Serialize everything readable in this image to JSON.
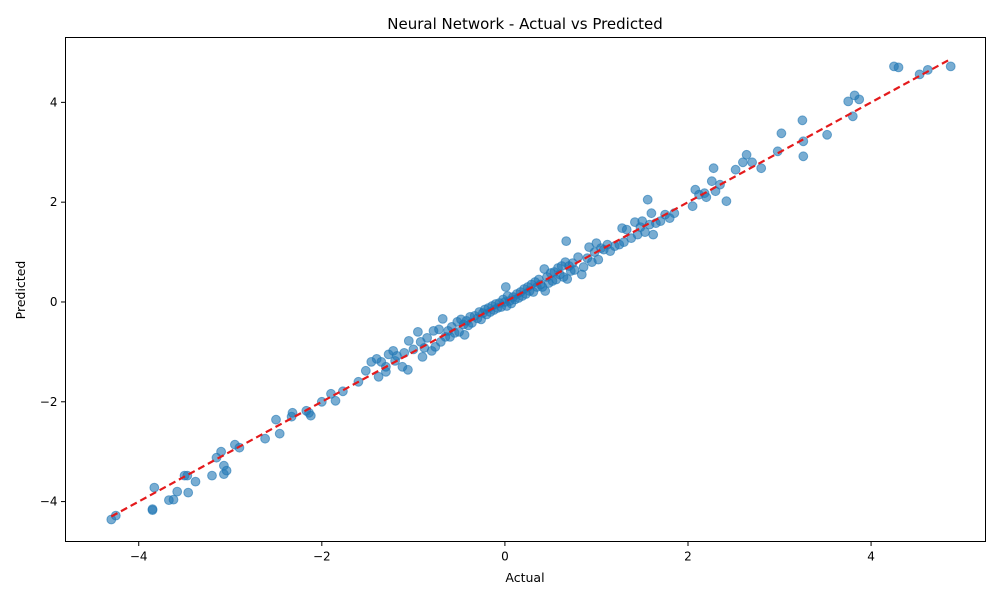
{
  "chart_data": {
    "type": "scatter",
    "title": "Neural Network - Actual vs Predicted",
    "xlabel": "Actual",
    "ylabel": "Predicted",
    "xlim": [
      -4.8,
      5.25
    ],
    "ylim": [
      -4.8,
      5.3
    ],
    "xticks": [
      -4,
      -2,
      0,
      2,
      4
    ],
    "yticks": [
      -4,
      -2,
      0,
      2,
      4
    ],
    "tick_labels_x": [
      "−4",
      "−2",
      "0",
      "2",
      "4"
    ],
    "tick_labels_y": [
      "−4",
      "−2",
      "0",
      "2",
      "4"
    ],
    "grid": false,
    "point_color": "#1f77b4",
    "line_color": "#e41a1c",
    "reference_line": {
      "style": "dashed",
      "x": [
        -4.3,
        4.87
      ],
      "y": [
        -4.3,
        4.87
      ]
    },
    "points": [
      [
        -4.3,
        -4.36
      ],
      [
        -4.25,
        -4.28
      ],
      [
        -3.85,
        -4.15
      ],
      [
        -3.83,
        -3.72
      ],
      [
        -3.85,
        -4.17
      ],
      [
        -3.67,
        -3.97
      ],
      [
        -3.62,
        -3.96
      ],
      [
        -3.58,
        -3.8
      ],
      [
        -3.5,
        -3.48
      ],
      [
        -3.47,
        -3.48
      ],
      [
        -3.46,
        -3.82
      ],
      [
        -3.38,
        -3.6
      ],
      [
        -3.2,
        -3.48
      ],
      [
        -3.15,
        -3.12
      ],
      [
        -3.1,
        -3.0
      ],
      [
        -3.07,
        -3.28
      ],
      [
        -3.07,
        -3.45
      ],
      [
        -3.04,
        -3.38
      ],
      [
        -2.95,
        -2.86
      ],
      [
        -2.9,
        -2.92
      ],
      [
        -2.62,
        -2.74
      ],
      [
        -2.5,
        -2.36
      ],
      [
        -2.46,
        -2.64
      ],
      [
        -2.33,
        -2.3
      ],
      [
        -2.32,
        -2.22
      ],
      [
        -2.17,
        -2.18
      ],
      [
        -2.14,
        -2.22
      ],
      [
        -2.12,
        -2.28
      ],
      [
        -2.0,
        -2.0
      ],
      [
        -1.9,
        -1.84
      ],
      [
        -1.85,
        -1.98
      ],
      [
        -1.77,
        -1.79
      ],
      [
        -1.6,
        -1.6
      ],
      [
        -1.52,
        -1.38
      ],
      [
        -1.46,
        -1.2
      ],
      [
        -1.4,
        -1.14
      ],
      [
        -1.38,
        -1.5
      ],
      [
        -1.35,
        -1.2
      ],
      [
        -1.3,
        -1.4
      ],
      [
        -1.3,
        -1.3
      ],
      [
        -1.27,
        -1.05
      ],
      [
        -1.22,
        -0.98
      ],
      [
        -1.2,
        -1.18
      ],
      [
        -1.18,
        -1.08
      ],
      [
        -1.12,
        -1.3
      ],
      [
        -1.1,
        -1.02
      ],
      [
        -1.06,
        -1.36
      ],
      [
        -1.05,
        -0.78
      ],
      [
        -1.0,
        -0.95
      ],
      [
        -0.95,
        -0.6
      ],
      [
        -0.92,
        -0.8
      ],
      [
        -0.9,
        -1.1
      ],
      [
        -0.88,
        -0.92
      ],
      [
        -0.85,
        -0.72
      ],
      [
        -0.8,
        -0.98
      ],
      [
        -0.78,
        -0.58
      ],
      [
        -0.76,
        -0.9
      ],
      [
        -0.72,
        -0.55
      ],
      [
        -0.7,
        -0.8
      ],
      [
        -0.68,
        -0.34
      ],
      [
        -0.65,
        -0.7
      ],
      [
        -0.62,
        -0.58
      ],
      [
        -0.6,
        -0.7
      ],
      [
        -0.58,
        -0.5
      ],
      [
        -0.55,
        -0.62
      ],
      [
        -0.52,
        -0.4
      ],
      [
        -0.5,
        -0.6
      ],
      [
        -0.48,
        -0.35
      ],
      [
        -0.45,
        -0.45
      ],
      [
        -0.44,
        -0.66
      ],
      [
        -0.42,
        -0.38
      ],
      [
        -0.4,
        -0.47
      ],
      [
        -0.38,
        -0.3
      ],
      [
        -0.36,
        -0.42
      ],
      [
        -0.33,
        -0.28
      ],
      [
        -0.3,
        -0.33
      ],
      [
        -0.28,
        -0.2
      ],
      [
        -0.26,
        -0.35
      ],
      [
        -0.24,
        -0.22
      ],
      [
        -0.22,
        -0.15
      ],
      [
        -0.2,
        -0.25
      ],
      [
        -0.18,
        -0.12
      ],
      [
        -0.16,
        -0.2
      ],
      [
        -0.14,
        -0.08
      ],
      [
        -0.12,
        -0.16
      ],
      [
        -0.1,
        -0.04
      ],
      [
        -0.08,
        -0.12
      ],
      [
        -0.06,
        -0.02
      ],
      [
        -0.04,
        -0.1
      ],
      [
        -0.02,
        0.05
      ],
      [
        0.0,
        0.0
      ],
      [
        0.01,
        0.3
      ],
      [
        0.02,
        -0.08
      ],
      [
        0.03,
        0.12
      ],
      [
        0.05,
        0.02
      ],
      [
        0.07,
        -0.03
      ],
      [
        0.09,
        0.1
      ],
      [
        0.11,
        0.05
      ],
      [
        0.13,
        0.16
      ],
      [
        0.15,
        0.08
      ],
      [
        0.17,
        0.2
      ],
      [
        0.19,
        0.12
      ],
      [
        0.21,
        0.26
      ],
      [
        0.23,
        0.16
      ],
      [
        0.25,
        0.3
      ],
      [
        0.27,
        0.22
      ],
      [
        0.29,
        0.35
      ],
      [
        0.31,
        0.2
      ],
      [
        0.33,
        0.4
      ],
      [
        0.35,
        0.3
      ],
      [
        0.37,
        0.45
      ],
      [
        0.39,
        0.35
      ],
      [
        0.41,
        0.3
      ],
      [
        0.43,
        0.66
      ],
      [
        0.44,
        0.22
      ],
      [
        0.46,
        0.5
      ],
      [
        0.48,
        0.38
      ],
      [
        0.5,
        0.58
      ],
      [
        0.52,
        0.42
      ],
      [
        0.54,
        0.6
      ],
      [
        0.56,
        0.45
      ],
      [
        0.58,
        0.68
      ],
      [
        0.6,
        0.55
      ],
      [
        0.62,
        0.72
      ],
      [
        0.64,
        0.5
      ],
      [
        0.66,
        0.8
      ],
      [
        0.67,
        1.22
      ],
      [
        0.68,
        0.46
      ],
      [
        0.7,
        0.72
      ],
      [
        0.72,
        0.62
      ],
      [
        0.74,
        0.78
      ],
      [
        0.76,
        0.64
      ],
      [
        0.8,
        0.9
      ],
      [
        0.84,
        0.55
      ],
      [
        0.86,
        0.7
      ],
      [
        0.9,
        0.88
      ],
      [
        0.92,
        1.1
      ],
      [
        0.95,
        0.8
      ],
      [
        0.98,
        1.0
      ],
      [
        1.0,
        1.18
      ],
      [
        1.02,
        0.85
      ],
      [
        1.05,
        1.08
      ],
      [
        1.08,
        1.05
      ],
      [
        1.12,
        1.15
      ],
      [
        1.15,
        1.02
      ],
      [
        1.2,
        1.12
      ],
      [
        1.25,
        1.15
      ],
      [
        1.28,
        1.48
      ],
      [
        1.3,
        1.2
      ],
      [
        1.33,
        1.45
      ],
      [
        1.38,
        1.28
      ],
      [
        1.42,
        1.6
      ],
      [
        1.45,
        1.35
      ],
      [
        1.48,
        1.5
      ],
      [
        1.5,
        1.62
      ],
      [
        1.53,
        1.4
      ],
      [
        1.56,
        2.05
      ],
      [
        1.58,
        1.55
      ],
      [
        1.6,
        1.78
      ],
      [
        1.62,
        1.35
      ],
      [
        1.65,
        1.58
      ],
      [
        1.7,
        1.62
      ],
      [
        1.75,
        1.75
      ],
      [
        1.8,
        1.68
      ],
      [
        1.85,
        1.78
      ],
      [
        2.05,
        1.92
      ],
      [
        2.08,
        2.25
      ],
      [
        2.12,
        2.15
      ],
      [
        2.18,
        2.18
      ],
      [
        2.2,
        2.1
      ],
      [
        2.26,
        2.42
      ],
      [
        2.28,
        2.68
      ],
      [
        2.3,
        2.22
      ],
      [
        2.35,
        2.35
      ],
      [
        2.42,
        2.02
      ],
      [
        2.52,
        2.65
      ],
      [
        2.6,
        2.8
      ],
      [
        2.64,
        2.95
      ],
      [
        2.7,
        2.8
      ],
      [
        2.8,
        2.68
      ],
      [
        2.98,
        3.02
      ],
      [
        3.02,
        3.38
      ],
      [
        3.25,
        3.64
      ],
      [
        3.26,
        3.22
      ],
      [
        3.26,
        2.92
      ],
      [
        3.52,
        3.35
      ],
      [
        3.75,
        4.02
      ],
      [
        3.8,
        3.72
      ],
      [
        3.82,
        4.14
      ],
      [
        3.87,
        4.06
      ],
      [
        4.25,
        4.72
      ],
      [
        4.3,
        4.7
      ],
      [
        4.53,
        4.56
      ],
      [
        4.62,
        4.65
      ],
      [
        4.87,
        4.72
      ]
    ]
  }
}
